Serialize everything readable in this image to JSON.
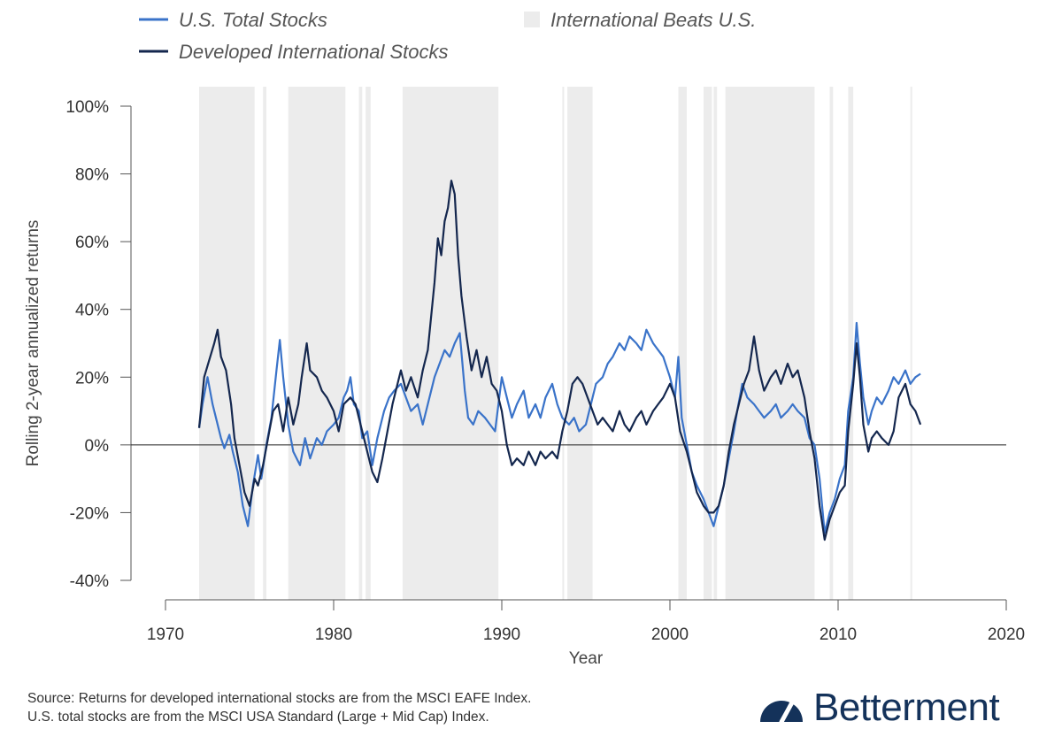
{
  "legend": {
    "us_label": "U.S. Total Stocks",
    "intl_label": "Developed International Stocks",
    "shade_label": "International Beats U.S."
  },
  "source": {
    "line1": "Source: Returns for developed international stocks are from the MSCI EAFE Index.",
    "line2": "U.S. total stocks are from the MSCI USA Standard (Large + Mid Cap) Index."
  },
  "brand": {
    "name": "Betterment",
    "logo_icon": "speedometer-icon"
  },
  "colors": {
    "us": "#3a73c9",
    "intl": "#14274e",
    "shade": "#ececec",
    "zero_line": "#222222",
    "axis": "#555555"
  },
  "chart_data": {
    "type": "line",
    "xlabel": "Year",
    "ylabel": "Rolling 2-year annualized returns",
    "xlim": [
      1970,
      2020
    ],
    "ylim": [
      -40,
      100
    ],
    "x_ticks": [
      1970,
      1980,
      1990,
      2000,
      2010,
      2020
    ],
    "x_tick_labels": [
      "1970",
      "1980",
      "1990",
      "2000",
      "2010",
      "2020"
    ],
    "y_ticks": [
      -40,
      -20,
      0,
      20,
      40,
      60,
      80,
      100
    ],
    "y_tick_labels": [
      "-40%",
      "-20%",
      "0%",
      "20%",
      "40%",
      "60%",
      "80%",
      "100%"
    ],
    "grid": false,
    "legend_position": "top",
    "shaded_periods": {
      "name": "International Beats U.S.",
      "ranges": [
        [
          1972.0,
          1975.3
        ],
        [
          1975.8,
          1976.0
        ],
        [
          1977.3,
          1980.7
        ],
        [
          1981.5,
          1981.7
        ],
        [
          1981.9,
          1982.2
        ],
        [
          1984.1,
          1989.8
        ],
        [
          1993.6,
          1993.7
        ],
        [
          1993.9,
          1995.4
        ],
        [
          2000.5,
          2001.0
        ],
        [
          2002.0,
          2002.5
        ],
        [
          2002.6,
          2002.8
        ],
        [
          2003.3,
          2008.6
        ],
        [
          2009.5,
          2009.7
        ],
        [
          2010.6,
          2010.9
        ],
        [
          2014.3,
          2014.4
        ]
      ]
    },
    "series": [
      {
        "name": "U.S. Total Stocks",
        "points": [
          [
            1972.0,
            5
          ],
          [
            1972.2,
            12
          ],
          [
            1972.5,
            20
          ],
          [
            1972.8,
            12
          ],
          [
            1973.0,
            8
          ],
          [
            1973.3,
            2
          ],
          [
            1973.5,
            -1
          ],
          [
            1973.8,
            3
          ],
          [
            1974.0,
            -2
          ],
          [
            1974.3,
            -8
          ],
          [
            1974.6,
            -18
          ],
          [
            1974.9,
            -24
          ],
          [
            1975.2,
            -12
          ],
          [
            1975.5,
            -3
          ],
          [
            1975.7,
            -10
          ],
          [
            1976.0,
            0
          ],
          [
            1976.3,
            8
          ],
          [
            1976.6,
            22
          ],
          [
            1976.8,
            31
          ],
          [
            1977.0,
            20
          ],
          [
            1977.3,
            6
          ],
          [
            1977.6,
            -2
          ],
          [
            1978.0,
            -6
          ],
          [
            1978.3,
            2
          ],
          [
            1978.6,
            -4
          ],
          [
            1979.0,
            2
          ],
          [
            1979.3,
            0
          ],
          [
            1979.6,
            4
          ],
          [
            1980.0,
            6
          ],
          [
            1980.3,
            8
          ],
          [
            1980.6,
            14
          ],
          [
            1980.8,
            16
          ],
          [
            1981.0,
            20
          ],
          [
            1981.2,
            12
          ],
          [
            1981.5,
            10
          ],
          [
            1981.7,
            2
          ],
          [
            1982.0,
            4
          ],
          [
            1982.3,
            -6
          ],
          [
            1982.6,
            2
          ],
          [
            1983.0,
            10
          ],
          [
            1983.3,
            14
          ],
          [
            1983.6,
            16
          ],
          [
            1984.0,
            18
          ],
          [
            1984.3,
            14
          ],
          [
            1984.6,
            10
          ],
          [
            1985.0,
            12
          ],
          [
            1985.3,
            6
          ],
          [
            1985.6,
            12
          ],
          [
            1986.0,
            20
          ],
          [
            1986.3,
            24
          ],
          [
            1986.6,
            28
          ],
          [
            1986.9,
            26
          ],
          [
            1987.2,
            30
          ],
          [
            1987.5,
            33
          ],
          [
            1987.8,
            16
          ],
          [
            1988.0,
            8
          ],
          [
            1988.3,
            6
          ],
          [
            1988.6,
            10
          ],
          [
            1989.0,
            8
          ],
          [
            1989.3,
            6
          ],
          [
            1989.6,
            4
          ],
          [
            1989.8,
            12
          ],
          [
            1990.0,
            20
          ],
          [
            1990.3,
            14
          ],
          [
            1990.6,
            8
          ],
          [
            1990.9,
            12
          ],
          [
            1991.3,
            16
          ],
          [
            1991.6,
            8
          ],
          [
            1992.0,
            12
          ],
          [
            1992.3,
            8
          ],
          [
            1992.6,
            14
          ],
          [
            1993.0,
            18
          ],
          [
            1993.3,
            12
          ],
          [
            1993.6,
            8
          ],
          [
            1994.0,
            6
          ],
          [
            1994.3,
            8
          ],
          [
            1994.6,
            4
          ],
          [
            1995.0,
            6
          ],
          [
            1995.3,
            12
          ],
          [
            1995.6,
            18
          ],
          [
            1996.0,
            20
          ],
          [
            1996.3,
            24
          ],
          [
            1996.6,
            26
          ],
          [
            1997.0,
            30
          ],
          [
            1997.3,
            28
          ],
          [
            1997.6,
            32
          ],
          [
            1998.0,
            30
          ],
          [
            1998.3,
            28
          ],
          [
            1998.6,
            34
          ],
          [
            1999.0,
            30
          ],
          [
            1999.3,
            28
          ],
          [
            1999.6,
            26
          ],
          [
            2000.0,
            20
          ],
          [
            2000.3,
            14
          ],
          [
            2000.5,
            26
          ],
          [
            2000.7,
            8
          ],
          [
            2001.0,
            0
          ],
          [
            2001.3,
            -8
          ],
          [
            2001.6,
            -12
          ],
          [
            2002.0,
            -16
          ],
          [
            2002.3,
            -20
          ],
          [
            2002.6,
            -24
          ],
          [
            2002.9,
            -18
          ],
          [
            2003.2,
            -12
          ],
          [
            2003.5,
            -4
          ],
          [
            2003.8,
            4
          ],
          [
            2004.0,
            10
          ],
          [
            2004.3,
            18
          ],
          [
            2004.6,
            14
          ],
          [
            2005.0,
            12
          ],
          [
            2005.3,
            10
          ],
          [
            2005.6,
            8
          ],
          [
            2006.0,
            10
          ],
          [
            2006.3,
            12
          ],
          [
            2006.6,
            8
          ],
          [
            2007.0,
            10
          ],
          [
            2007.3,
            12
          ],
          [
            2007.6,
            10
          ],
          [
            2008.0,
            8
          ],
          [
            2008.3,
            2
          ],
          [
            2008.6,
            0
          ],
          [
            2008.9,
            -10
          ],
          [
            2009.2,
            -26
          ],
          [
            2009.5,
            -20
          ],
          [
            2009.8,
            -16
          ],
          [
            2010.1,
            -10
          ],
          [
            2010.4,
            -6
          ],
          [
            2010.6,
            10
          ],
          [
            2010.9,
            20
          ],
          [
            2011.1,
            36
          ],
          [
            2011.3,
            24
          ],
          [
            2011.5,
            14
          ],
          [
            2011.8,
            6
          ],
          [
            2012.0,
            10
          ],
          [
            2012.3,
            14
          ],
          [
            2012.6,
            12
          ],
          [
            2013.0,
            16
          ],
          [
            2013.3,
            20
          ],
          [
            2013.6,
            18
          ],
          [
            2014.0,
            22
          ],
          [
            2014.3,
            18
          ],
          [
            2014.6,
            20
          ],
          [
            2014.9,
            21
          ]
        ]
      },
      {
        "name": "Developed International Stocks",
        "points": [
          [
            1972.0,
            5
          ],
          [
            1972.3,
            20
          ],
          [
            1972.6,
            25
          ],
          [
            1972.9,
            30
          ],
          [
            1973.1,
            34
          ],
          [
            1973.3,
            26
          ],
          [
            1973.6,
            22
          ],
          [
            1973.9,
            12
          ],
          [
            1974.1,
            2
          ],
          [
            1974.4,
            -6
          ],
          [
            1974.7,
            -14
          ],
          [
            1975.0,
            -18
          ],
          [
            1975.3,
            -10
          ],
          [
            1975.5,
            -12
          ],
          [
            1975.8,
            -6
          ],
          [
            1976.1,
            2
          ],
          [
            1976.4,
            10
          ],
          [
            1976.7,
            12
          ],
          [
            1977.0,
            4
          ],
          [
            1977.3,
            14
          ],
          [
            1977.6,
            6
          ],
          [
            1977.9,
            12
          ],
          [
            1978.1,
            20
          ],
          [
            1978.4,
            30
          ],
          [
            1978.6,
            22
          ],
          [
            1979.0,
            20
          ],
          [
            1979.3,
            16
          ],
          [
            1979.6,
            14
          ],
          [
            1980.0,
            10
          ],
          [
            1980.3,
            4
          ],
          [
            1980.6,
            12
          ],
          [
            1981.0,
            14
          ],
          [
            1981.3,
            12
          ],
          [
            1981.6,
            6
          ],
          [
            1981.8,
            2
          ],
          [
            1982.0,
            -2
          ],
          [
            1982.3,
            -8
          ],
          [
            1982.6,
            -11
          ],
          [
            1982.9,
            -4
          ],
          [
            1983.2,
            4
          ],
          [
            1983.5,
            12
          ],
          [
            1983.8,
            18
          ],
          [
            1984.0,
            22
          ],
          [
            1984.3,
            16
          ],
          [
            1984.6,
            20
          ],
          [
            1985.0,
            14
          ],
          [
            1985.3,
            22
          ],
          [
            1985.6,
            28
          ],
          [
            1986.0,
            48
          ],
          [
            1986.2,
            61
          ],
          [
            1986.4,
            56
          ],
          [
            1986.6,
            66
          ],
          [
            1986.8,
            70
          ],
          [
            1987.0,
            78
          ],
          [
            1987.2,
            74
          ],
          [
            1987.4,
            56
          ],
          [
            1987.6,
            44
          ],
          [
            1987.9,
            32
          ],
          [
            1988.2,
            22
          ],
          [
            1988.5,
            28
          ],
          [
            1988.8,
            20
          ],
          [
            1989.1,
            26
          ],
          [
            1989.4,
            18
          ],
          [
            1989.7,
            16
          ],
          [
            1990.0,
            10
          ],
          [
            1990.3,
            0
          ],
          [
            1990.6,
            -6
          ],
          [
            1990.9,
            -4
          ],
          [
            1991.3,
            -6
          ],
          [
            1991.6,
            -2
          ],
          [
            1992.0,
            -6
          ],
          [
            1992.3,
            -2
          ],
          [
            1992.6,
            -4
          ],
          [
            1993.0,
            -2
          ],
          [
            1993.3,
            -4
          ],
          [
            1993.6,
            4
          ],
          [
            1993.9,
            10
          ],
          [
            1994.2,
            18
          ],
          [
            1994.5,
            20
          ],
          [
            1994.8,
            18
          ],
          [
            1995.1,
            14
          ],
          [
            1995.4,
            10
          ],
          [
            1995.7,
            6
          ],
          [
            1996.0,
            8
          ],
          [
            1996.3,
            6
          ],
          [
            1996.6,
            4
          ],
          [
            1997.0,
            10
          ],
          [
            1997.3,
            6
          ],
          [
            1997.6,
            4
          ],
          [
            1998.0,
            8
          ],
          [
            1998.3,
            10
          ],
          [
            1998.6,
            6
          ],
          [
            1999.0,
            10
          ],
          [
            1999.3,
            12
          ],
          [
            1999.6,
            14
          ],
          [
            2000.0,
            18
          ],
          [
            2000.3,
            14
          ],
          [
            2000.6,
            4
          ],
          [
            2001.0,
            -2
          ],
          [
            2001.3,
            -8
          ],
          [
            2001.6,
            -14
          ],
          [
            2002.0,
            -18
          ],
          [
            2002.3,
            -20
          ],
          [
            2002.6,
            -20
          ],
          [
            2002.9,
            -18
          ],
          [
            2003.2,
            -12
          ],
          [
            2003.5,
            -2
          ],
          [
            2003.8,
            6
          ],
          [
            2004.1,
            12
          ],
          [
            2004.4,
            18
          ],
          [
            2004.7,
            22
          ],
          [
            2005.0,
            32
          ],
          [
            2005.3,
            22
          ],
          [
            2005.6,
            16
          ],
          [
            2006.0,
            20
          ],
          [
            2006.3,
            22
          ],
          [
            2006.6,
            18
          ],
          [
            2007.0,
            24
          ],
          [
            2007.3,
            20
          ],
          [
            2007.6,
            22
          ],
          [
            2008.0,
            14
          ],
          [
            2008.3,
            4
          ],
          [
            2008.6,
            -4
          ],
          [
            2008.9,
            -18
          ],
          [
            2009.2,
            -28
          ],
          [
            2009.5,
            -22
          ],
          [
            2009.8,
            -18
          ],
          [
            2010.1,
            -14
          ],
          [
            2010.4,
            -12
          ],
          [
            2010.6,
            4
          ],
          [
            2010.9,
            18
          ],
          [
            2011.1,
            30
          ],
          [
            2011.3,
            20
          ],
          [
            2011.5,
            6
          ],
          [
            2011.8,
            -2
          ],
          [
            2012.0,
            2
          ],
          [
            2012.3,
            4
          ],
          [
            2012.6,
            2
          ],
          [
            2013.0,
            0
          ],
          [
            2013.3,
            4
          ],
          [
            2013.6,
            14
          ],
          [
            2014.0,
            18
          ],
          [
            2014.3,
            12
          ],
          [
            2014.6,
            10
          ],
          [
            2014.9,
            6
          ]
        ]
      }
    ]
  }
}
